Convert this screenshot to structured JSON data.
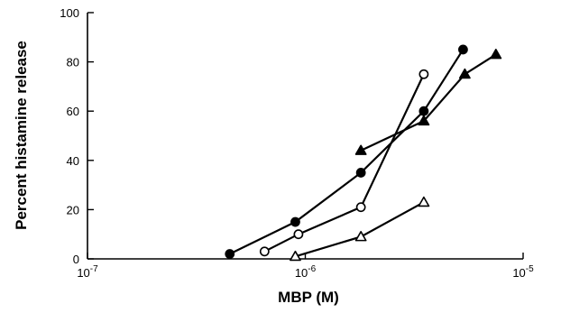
{
  "chart_data": {
    "type": "line",
    "xlabel": "MBP (M)",
    "ylabel": "Percent histamine release",
    "x_scale": "log",
    "xlim": [
      1e-07,
      1e-05
    ],
    "ylim": [
      0,
      100
    ],
    "x_ticks": [
      {
        "value": 1e-07,
        "base": "10",
        "exp": "-7"
      },
      {
        "value": 1e-06,
        "base": "10",
        "exp": "-6"
      },
      {
        "value": 1e-05,
        "base": "10",
        "exp": "-5"
      }
    ],
    "y_ticks": [
      "0",
      "20",
      "40",
      "60",
      "80",
      "100"
    ],
    "grid": false,
    "series": [
      {
        "marker": "filled-circle",
        "points": [
          [
            4.5e-07,
            2
          ],
          [
            9e-07,
            15
          ],
          [
            1.8e-06,
            35
          ],
          [
            3.5e-06,
            60
          ],
          [
            5.3e-06,
            85
          ]
        ]
      },
      {
        "marker": "open-circle",
        "points": [
          [
            6.5e-07,
            3
          ],
          [
            9.3e-07,
            10
          ],
          [
            1.8e-06,
            21
          ],
          [
            3.5e-06,
            75
          ]
        ]
      },
      {
        "marker": "filled-triangle",
        "points": [
          [
            1.8e-06,
            44
          ],
          [
            3.5e-06,
            56
          ],
          [
            5.4e-06,
            75
          ],
          [
            7.5e-06,
            83
          ]
        ]
      },
      {
        "marker": "open-triangle",
        "points": [
          [
            9e-07,
            1
          ],
          [
            1.8e-06,
            9
          ],
          [
            3.5e-06,
            23
          ]
        ]
      }
    ]
  }
}
